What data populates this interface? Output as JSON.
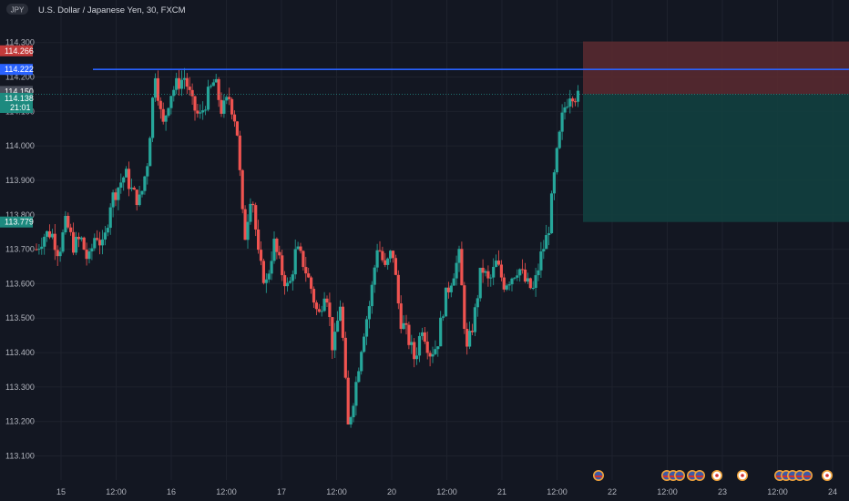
{
  "header": {
    "symbol_badge": "JPY",
    "title": "U.S. Dollar / Japanese Yen, 30, FXCM"
  },
  "colors": {
    "background": "#131722",
    "grid": "#1e222d",
    "up": "#26a69a",
    "down": "#ef5350",
    "resistance_line": "#2962ff",
    "stop_zone": "#5c2a30",
    "target_zone": "#123f3f"
  },
  "tags": {
    "stop": "114.266",
    "resistance": "114.222",
    "entry": "114.150",
    "last": "114.138",
    "countdown": "21:01",
    "target": "113.779"
  },
  "chart_data": {
    "type": "candlestick",
    "title": "U.S. Dollar / Japanese Yen, 30, FXCM",
    "ylim": [
      113.03,
      114.36
    ],
    "y_ticks": [
      "114.300",
      "114.200",
      "114.100",
      "114.000",
      "113.900",
      "113.800",
      "113.700",
      "113.600",
      "113.500",
      "113.400",
      "113.300",
      "113.200",
      "113.100"
    ],
    "x_ticks": [
      "15",
      "12:00",
      "16",
      "12:00",
      "17",
      "12:00",
      "20",
      "12:00",
      "21",
      "12:00",
      "22",
      "12:00",
      "23",
      "12:00",
      "24"
    ],
    "price_path": [
      [
        113.7,
        113.74
      ],
      [
        113.75,
        113.69
      ],
      [
        113.78,
        113.71
      ],
      [
        113.73,
        113.66
      ],
      [
        113.75,
        113.7
      ],
      [
        113.84,
        113.88
      ],
      [
        113.92,
        113.86
      ],
      [
        113.84,
        113.96
      ],
      [
        114.22,
        114.05
      ],
      [
        114.15,
        114.18
      ],
      [
        114.2,
        114.12
      ],
      [
        114.08,
        114.14
      ],
      [
        114.19,
        114.1
      ],
      [
        114.14,
        114.06
      ],
      [
        113.72,
        113.88
      ],
      [
        113.66,
        113.6
      ],
      [
        113.72,
        113.64
      ],
      [
        113.58,
        113.7
      ],
      [
        113.66,
        113.59
      ],
      [
        113.5,
        113.6
      ],
      [
        113.4,
        113.55
      ],
      [
        113.18,
        113.3
      ],
      [
        113.45,
        113.55
      ],
      [
        113.72,
        113.64
      ],
      [
        113.7,
        113.5
      ],
      [
        113.45,
        113.38
      ],
      [
        113.48,
        113.4
      ],
      [
        113.42,
        113.55
      ],
      [
        113.62,
        113.68
      ],
      [
        113.4,
        113.5
      ],
      [
        113.65,
        113.6
      ],
      [
        113.66,
        113.6
      ],
      [
        113.62,
        113.65
      ],
      [
        113.6,
        113.58
      ],
      [
        113.68,
        113.75
      ],
      [
        113.95,
        114.1
      ],
      [
        114.16,
        114.14
      ]
    ],
    "levels": {
      "resistance": 114.222,
      "stop": 114.266,
      "entry": 114.15,
      "target": 113.779
    },
    "events_row": [
      {
        "name": "us-flag-event",
        "count": 1
      },
      {
        "name": "us-flag-event-group",
        "count": 4
      },
      {
        "name": "jp-flag-event",
        "count": 1
      },
      {
        "name": "jp-flag-event",
        "count": 1
      },
      {
        "name": "mixed-flag-event-group",
        "count": 5
      },
      {
        "name": "jp-flag-event",
        "count": 1
      }
    ]
  }
}
